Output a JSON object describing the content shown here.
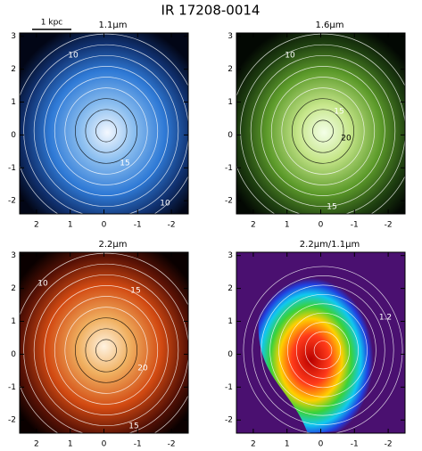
{
  "figure": {
    "title": "IR 17208-0014",
    "scale_bar": "1 kpc",
    "panels": [
      {
        "label": "1.1μm",
        "xlim": [
          2.5,
          -2.5
        ],
        "ylim": [
          -2.4,
          3.1
        ],
        "xticks": [
          2,
          1,
          0,
          -1,
          -2
        ],
        "yticks": [
          3,
          2,
          1,
          0,
          -1,
          -2
        ],
        "contour_labels": [
          "10",
          "15",
          "10"
        ]
      },
      {
        "label": "1.6μm",
        "xlim": [
          2.5,
          -2.5
        ],
        "ylim": [
          -2.4,
          3.1
        ],
        "xticks": [
          2,
          1,
          0,
          -1,
          -2
        ],
        "yticks": [
          3,
          2,
          1,
          0,
          -1,
          -2
        ],
        "contour_labels": [
          "10",
          "15",
          "20",
          "15"
        ]
      },
      {
        "label": "2.2μm",
        "xlim": [
          2.5,
          -2.5
        ],
        "ylim": [
          -2.4,
          3.1
        ],
        "xticks": [
          2,
          1,
          0,
          -1,
          -2
        ],
        "yticks": [
          3,
          2,
          1,
          0,
          -1,
          -2
        ],
        "contour_labels": [
          "10",
          "15",
          "20",
          "15"
        ]
      },
      {
        "label": "2.2μm/1.1μm",
        "xlim": [
          2.5,
          -2.5
        ],
        "ylim": [
          -2.4,
          3.1
        ],
        "xticks": [
          2,
          1,
          0,
          -1,
          -2
        ],
        "yticks": [
          3,
          2,
          1,
          0,
          -1,
          -2
        ],
        "contour_labels": [
          "1.2"
        ]
      }
    ]
  }
}
